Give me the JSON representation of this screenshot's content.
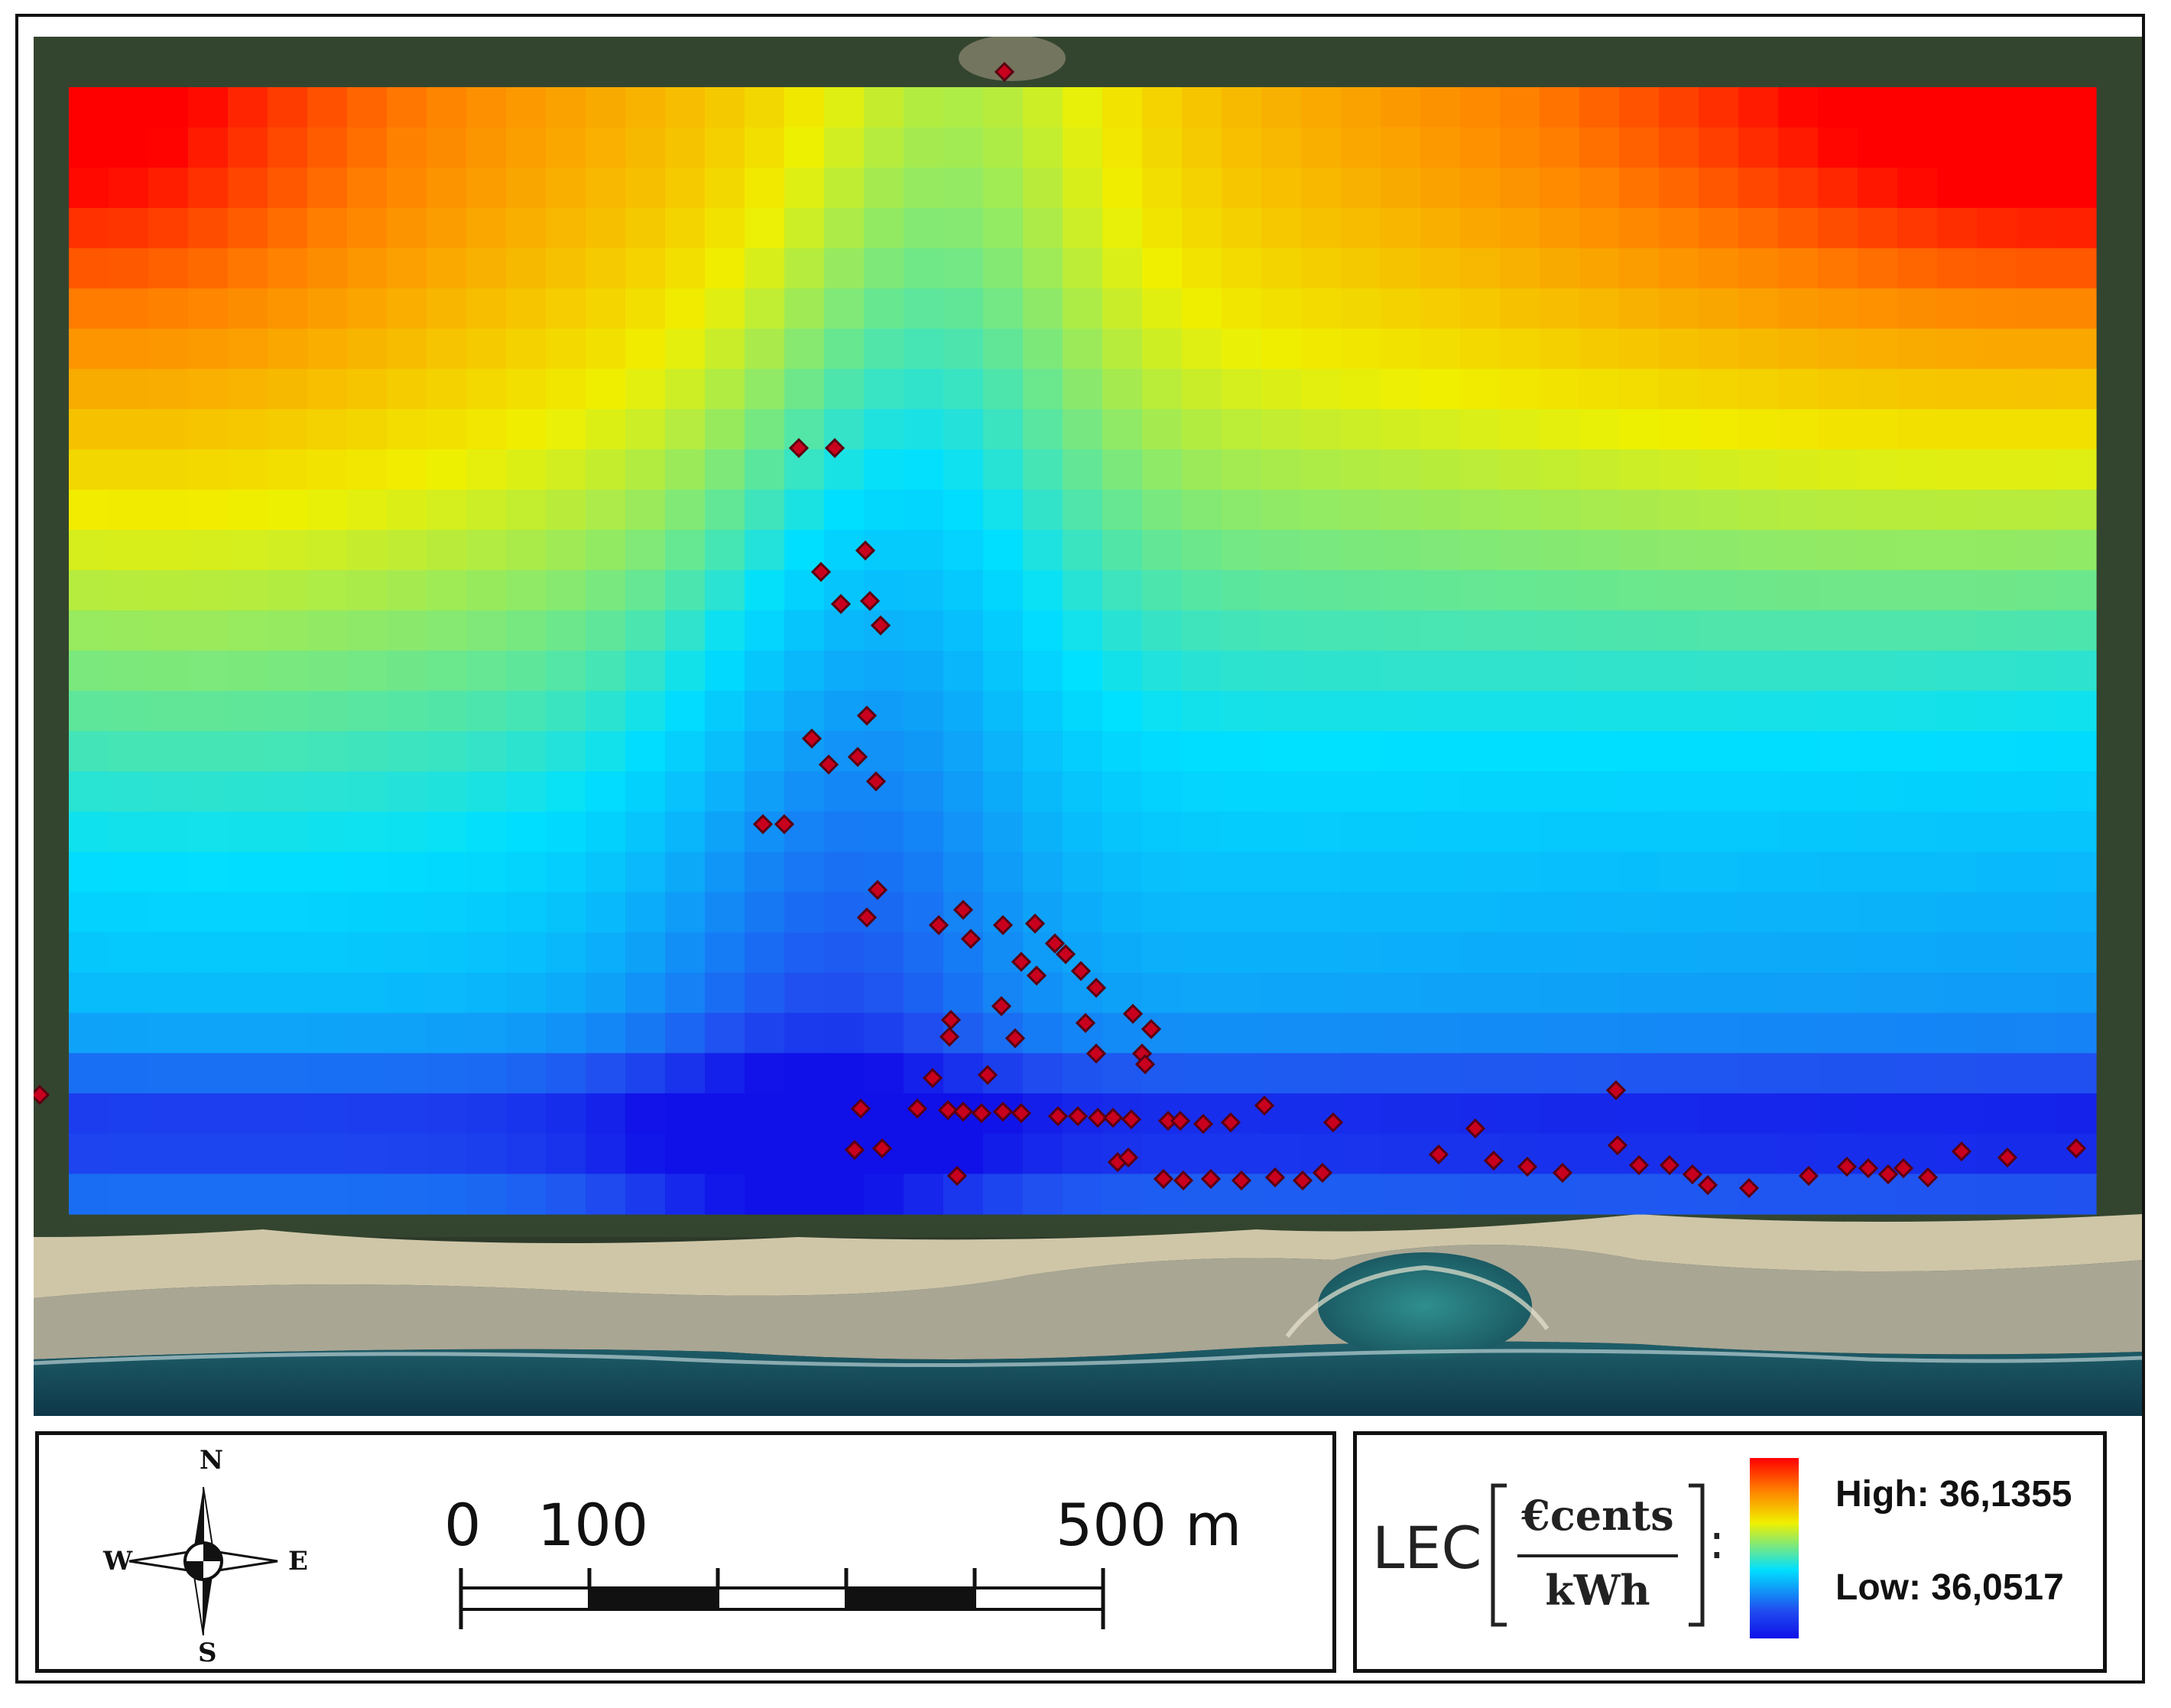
{
  "map": {
    "basemap": "satellite-imagery",
    "colormap": [
      "#1010e8",
      "#2050f0",
      "#00e0ff",
      "#f0f000",
      "#ff8000",
      "#ff0000"
    ],
    "point_color": "#c8001e",
    "point_count": 86
  },
  "compass": {
    "north": "N",
    "south": "S",
    "west": "W",
    "east": "E",
    "icon": "compass-rose-icon"
  },
  "scale_bar": {
    "label_0": "0",
    "label_100": "100",
    "label_500": "500 m"
  },
  "legend": {
    "title": "LEC",
    "unit_numerator": "€cents",
    "unit_denominator": "kWh",
    "colon": ":",
    "high_label": "High: 36,1355",
    "low_label": "Low: 36,0517"
  }
}
